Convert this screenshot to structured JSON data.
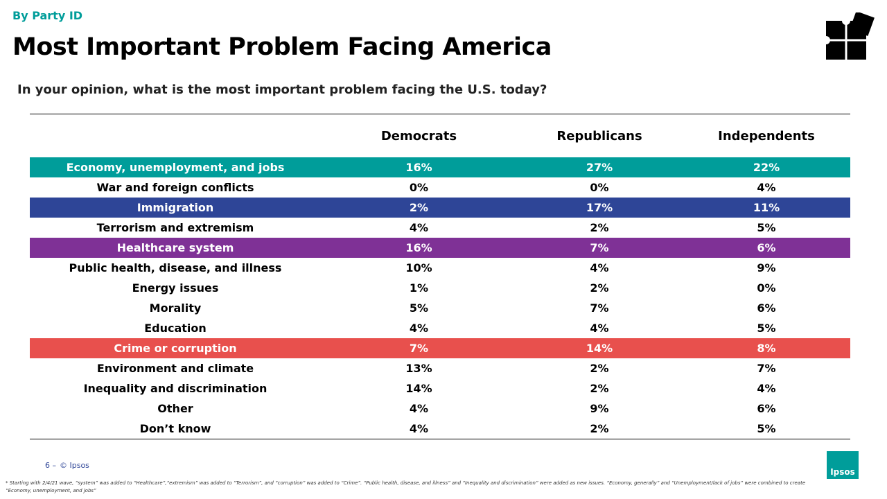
{
  "header": {
    "kicker": "By Party ID",
    "title": "Most Important Problem Facing America",
    "question": "In your opinion, what is the most important problem facing the U.S. today?"
  },
  "table": {
    "columns": [
      "Democrats",
      "Republicans",
      "Independents"
    ],
    "rows": [
      {
        "label": "Economy, unemployment, and jobs",
        "cells": [
          "16%",
          "27%",
          "22%"
        ],
        "highlight": "#009d9a"
      },
      {
        "label": "War and foreign conflicts",
        "cells": [
          "0%",
          "0%",
          "4%"
        ]
      },
      {
        "label": "Immigration",
        "cells": [
          "2%",
          "17%",
          "11%"
        ],
        "highlight": "#2e4597"
      },
      {
        "label": "Terrorism and extremism",
        "cells": [
          "4%",
          "2%",
          "5%"
        ]
      },
      {
        "label": "Healthcare system",
        "cells": [
          "16%",
          "7%",
          "6%"
        ],
        "highlight": "#7f3196"
      },
      {
        "label": "Public health, disease, and illness",
        "cells": [
          "10%",
          "4%",
          "9%"
        ]
      },
      {
        "label": "Energy issues",
        "cells": [
          "1%",
          "2%",
          "0%"
        ]
      },
      {
        "label": "Morality",
        "cells": [
          "5%",
          "7%",
          "6%"
        ]
      },
      {
        "label": "Education",
        "cells": [
          "4%",
          "4%",
          "5%"
        ]
      },
      {
        "label": "Crime or corruption",
        "cells": [
          "7%",
          "14%",
          "8%"
        ],
        "highlight": "#e8504d"
      },
      {
        "label": "Environment and climate",
        "cells": [
          "13%",
          "2%",
          "7%"
        ]
      },
      {
        "label": "Inequality and discrimination",
        "cells": [
          "14%",
          "2%",
          "4%"
        ]
      },
      {
        "label": "Other",
        "cells": [
          "4%",
          "9%",
          "6%"
        ]
      },
      {
        "label": "Don’t know",
        "cells": [
          "4%",
          "2%",
          "5%"
        ]
      }
    ]
  },
  "footer": {
    "page": "6 –",
    "copyright": "© Ipsos",
    "logo": "Ipsos",
    "note": "* Starting with 2/4/21 wave, “system” was added to “Healthcare”,“extremism” was added to “Terrorism”, and “corruption” was added to “Crime”. “Public health, disease, and illness” and “Inequality and discrimination” were added as new issues. “Economy, generally” and “Unemployment/lack of jobs” were combined to create “Economy, unemployment, and jobs”"
  }
}
